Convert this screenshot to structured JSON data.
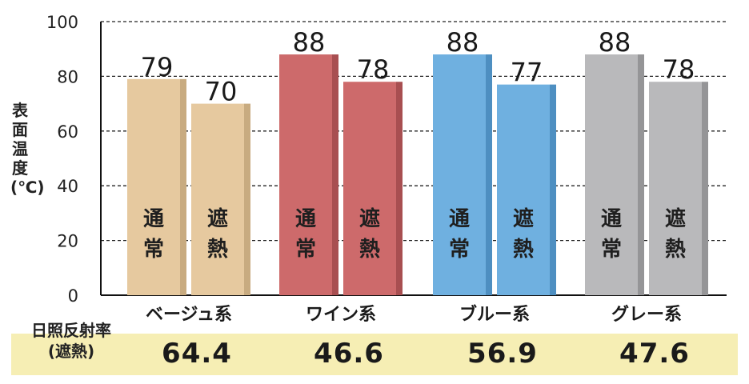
{
  "chart_data": {
    "type": "bar",
    "ylabel": "表面温度(℃)",
    "ylim": [
      0,
      100
    ],
    "yticks": [
      0,
      20,
      40,
      60,
      80,
      100
    ],
    "grid": "dashed horizontal",
    "categories": [
      "ベージュ系",
      "ワイン系",
      "ブルー系",
      "グレー系"
    ],
    "bar_labels": [
      "通常",
      "遮熱"
    ],
    "series": [
      {
        "name": "通常",
        "values": [
          79,
          88,
          88,
          88
        ]
      },
      {
        "name": "遮熱",
        "values": [
          70,
          78,
          77,
          78
        ]
      }
    ],
    "colors": {
      "ベージュ系": {
        "face": "#e6c99f",
        "side": "#c8ab80"
      },
      "ワイン系": {
        "face": "#cd6a6b",
        "side": "#a84f51"
      },
      "ブルー系": {
        "face": "#6fb0e0",
        "side": "#4e8fc1"
      },
      "グレー系": {
        "face": "#b9b9bb",
        "side": "#959597"
      }
    }
  },
  "reflectance": {
    "label_line1": "日照反射率",
    "label_line2": "(遮熱)",
    "values": [
      "64.4",
      "46.6",
      "56.9",
      "47.6"
    ]
  }
}
